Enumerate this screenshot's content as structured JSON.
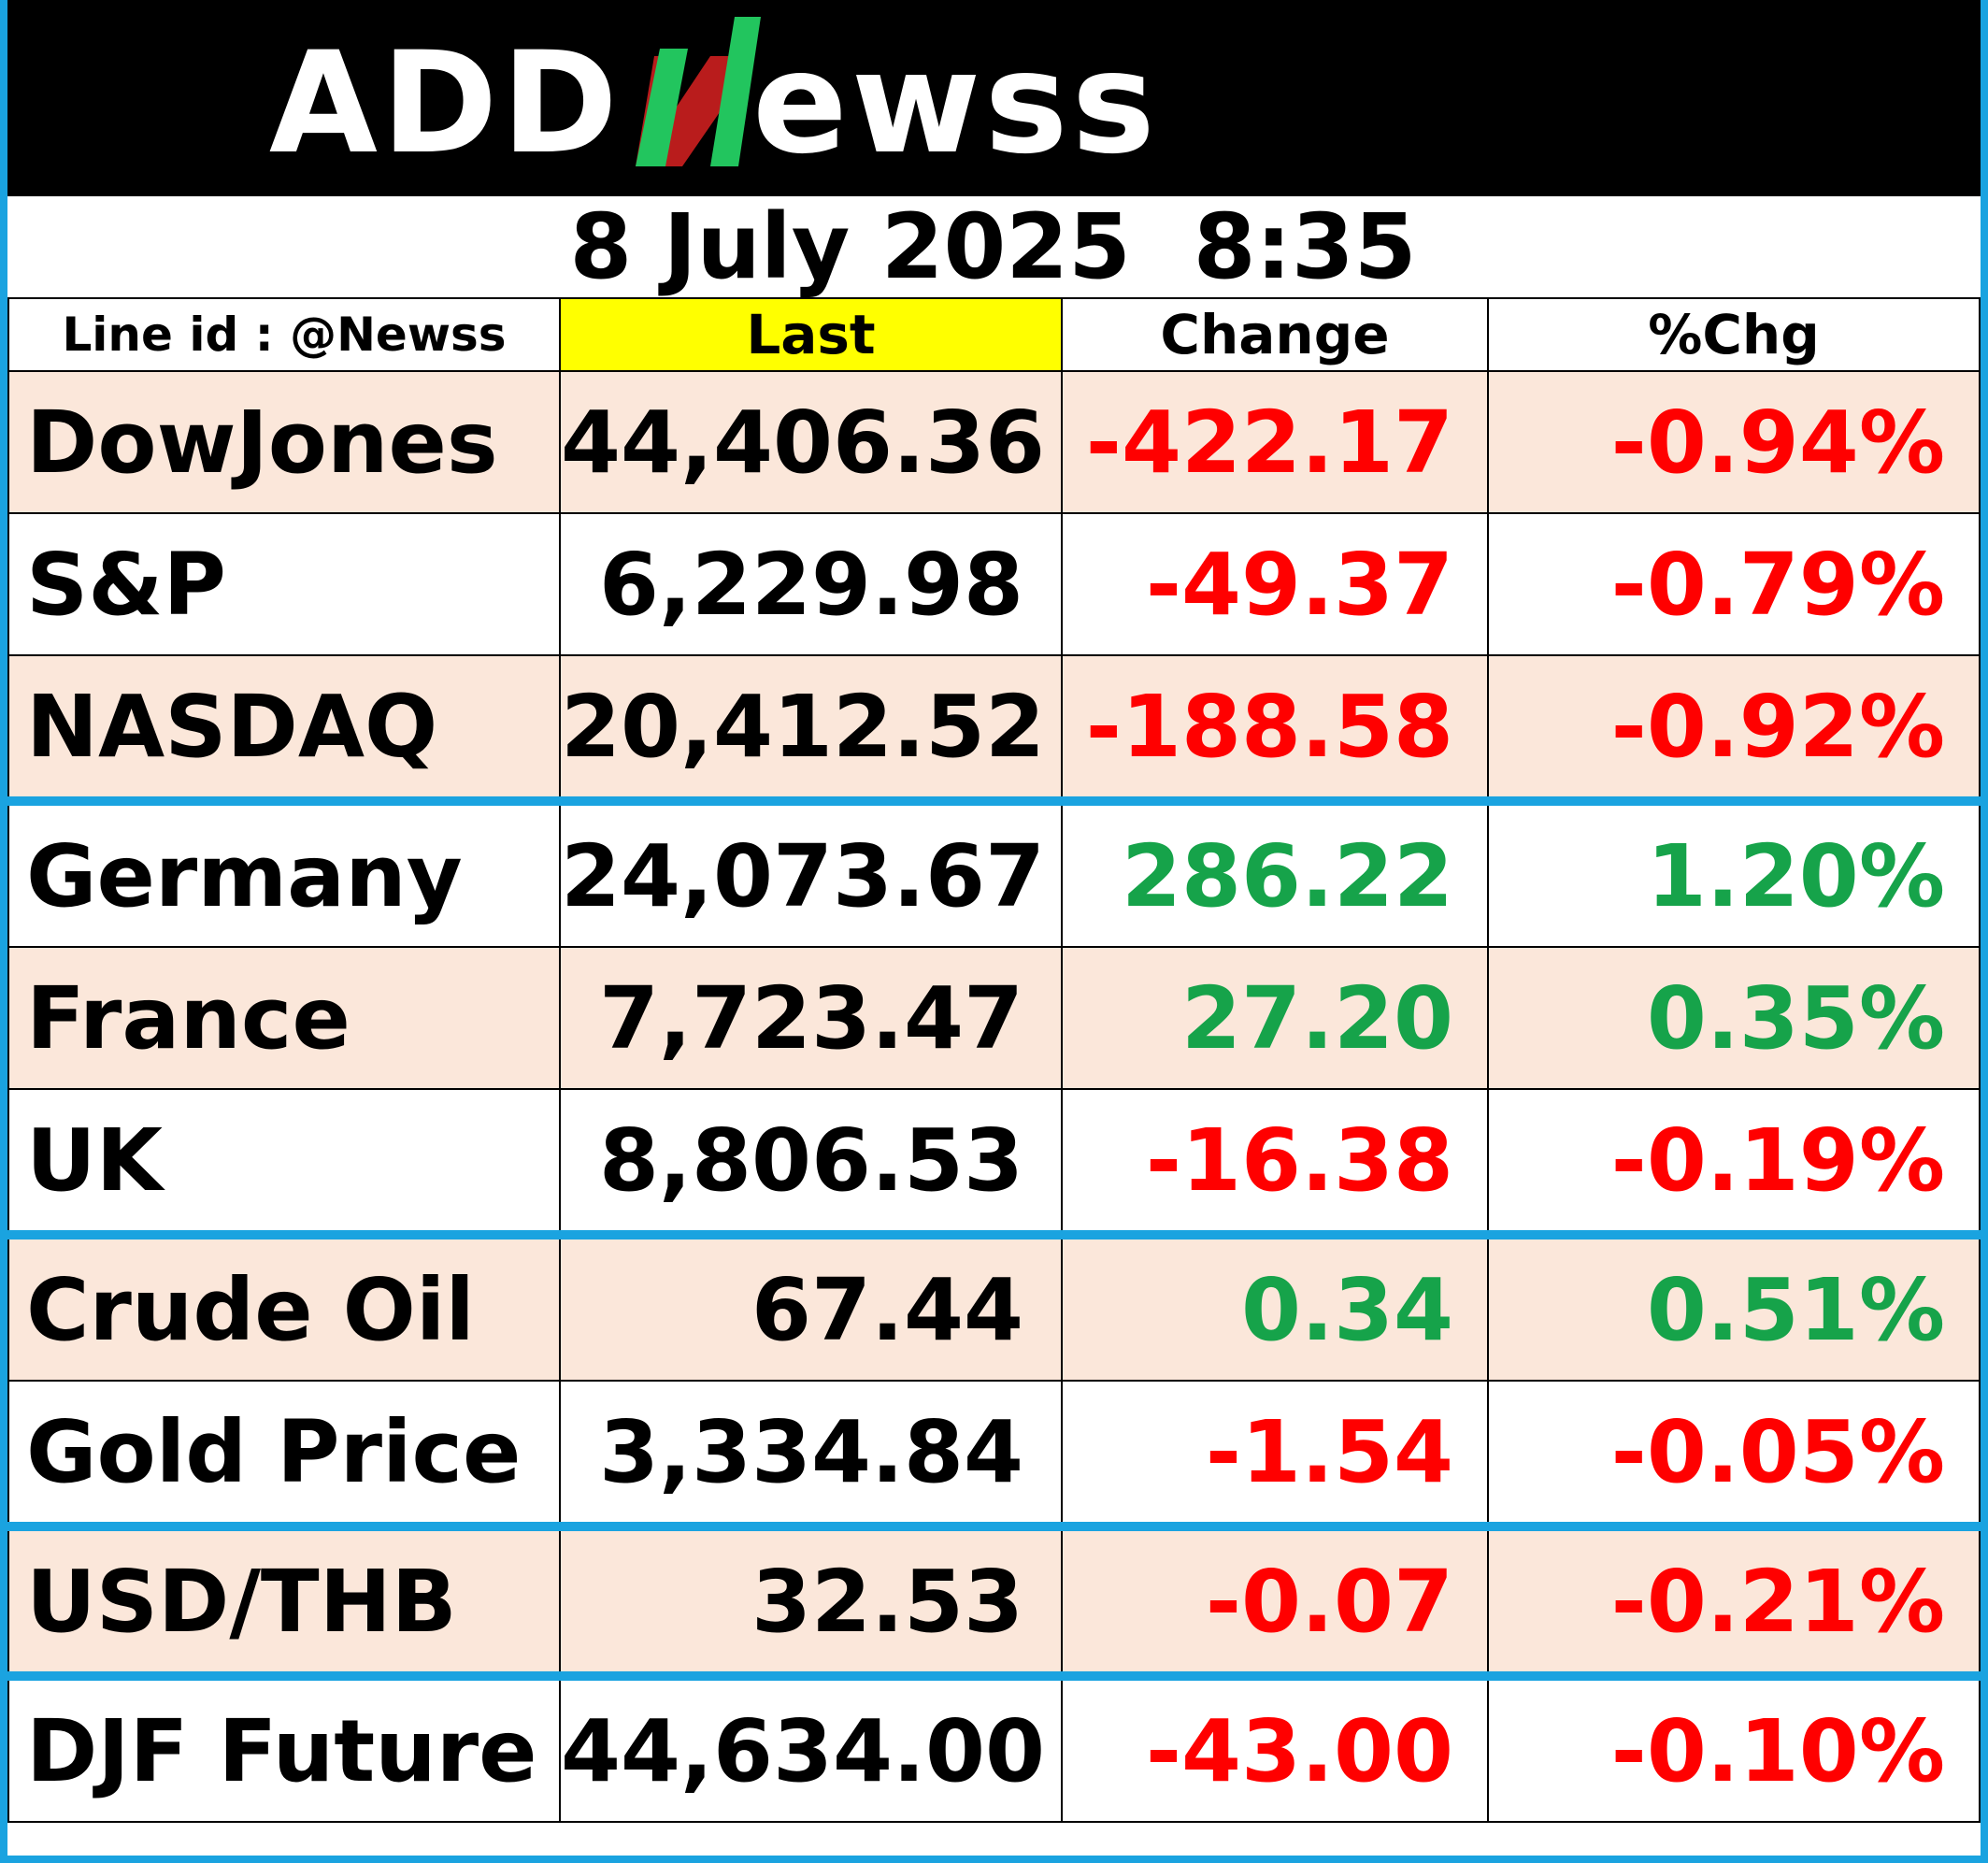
{
  "logo": {
    "text_left": "ADD",
    "text_n": "N",
    "text_right": "ewss",
    "colors": {
      "text": "#ffffff",
      "n_green": "#22c55e",
      "n_red": "#b91c1c"
    }
  },
  "date": {
    "day": "8 July 2025",
    "time": "8:35",
    "combined": "8 July 2025  8:35"
  },
  "header": {
    "line_id": "Line id : @Newss",
    "last": "Last",
    "change": "Change",
    "pct": "%Chg"
  },
  "colors": {
    "negative": "#ff0000",
    "positive": "#16a34a",
    "row_shade": "#fbe7da",
    "separator": "#1aa3e0",
    "last_header_bg": "#ffff00"
  },
  "rows": [
    {
      "name": "DowJones",
      "last": "44,406.36",
      "change": "-422.17",
      "pct": "-0.94%",
      "dir": "neg"
    },
    {
      "name": "S&P",
      "last": "6,229.98",
      "change": "-49.37",
      "pct": "-0.79%",
      "dir": "neg"
    },
    {
      "name": "NASDAQ",
      "last": "20,412.52",
      "change": "-188.58",
      "pct": "-0.92%",
      "dir": "neg"
    },
    {
      "name": "Germany",
      "last": "24,073.67",
      "change": "286.22",
      "pct": "1.20%",
      "dir": "pos"
    },
    {
      "name": "France",
      "last": "7,723.47",
      "change": "27.20",
      "pct": "0.35%",
      "dir": "pos"
    },
    {
      "name": "UK",
      "last": "8,806.53",
      "change": "-16.38",
      "pct": "-0.19%",
      "dir": "neg"
    },
    {
      "name": "Crude Oil",
      "last": "67.44",
      "change": "0.34",
      "pct": "0.51%",
      "dir": "pos"
    },
    {
      "name": "Gold Price",
      "last": "3,334.84",
      "change": "-1.54",
      "pct": "-0.05%",
      "dir": "neg"
    },
    {
      "name": "USD/THB",
      "last": "32.53",
      "change": "-0.07",
      "pct": "-0.21%",
      "dir": "neg"
    },
    {
      "name": "DJF Future",
      "last": "44,634.00",
      "change": "-43.00",
      "pct": "-0.10%",
      "dir": "neg"
    }
  ]
}
